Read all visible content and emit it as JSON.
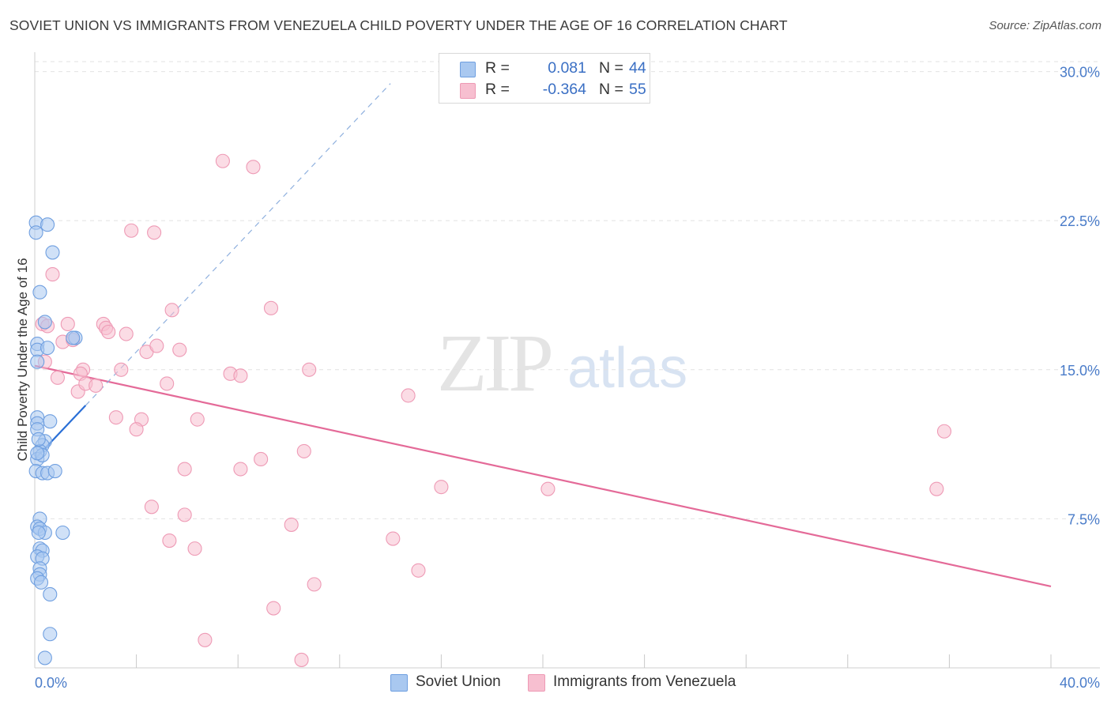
{
  "header": {
    "title": "SOVIET UNION VS IMMIGRANTS FROM VENEZUELA CHILD POVERTY UNDER THE AGE OF 16 CORRELATION CHART",
    "source": "Source: ZipAtlas.com"
  },
  "watermark": {
    "zip": "ZIP",
    "atlas": "atlas"
  },
  "legend": {
    "rows": [
      {
        "r_label": "R =",
        "r_value": "0.081",
        "n_label": "N =",
        "n_value": "44",
        "color": "#a9c8f0"
      },
      {
        "r_label": "R =",
        "r_value": "-0.364",
        "n_label": "N =",
        "n_value": "55",
        "color": "#f7bfd0"
      }
    ]
  },
  "bottom_legend": {
    "soviet": "Soviet Union",
    "venezuela": "Immigrants from Venezuela"
  },
  "colors": {
    "soviet_fill": "#a9c8f0",
    "soviet_stroke": "#6f9fe0",
    "soviet_line": "#2a6fd6",
    "venezuela_fill": "#f7bfd0",
    "venezuela_stroke": "#ee9ab5",
    "venezuela_line": "#e46a98",
    "grid": "#e2e2e2",
    "axis_text": "#4a7cc9"
  },
  "chart_data": {
    "type": "scatter",
    "title": "SOVIET UNION VS IMMIGRANTS FROM VENEZUELA CHILD POVERTY UNDER THE AGE OF 16 CORRELATION CHART",
    "xlabel": "",
    "ylabel": "Child Poverty Under the Age of 16",
    "xlim": [
      0,
      40
    ],
    "ylim": [
      0,
      30.5
    ],
    "x_tick_labels": [
      "0.0%",
      "40.0%"
    ],
    "y_ticks": [
      7.5,
      15.0,
      22.5,
      30.0
    ],
    "y_tick_labels": [
      "7.5%",
      "15.0%",
      "22.5%",
      "30.0%"
    ],
    "grid": true,
    "series": [
      {
        "name": "Soviet Union",
        "r": 0.081,
        "n": 44,
        "points": [
          [
            0.05,
            22.4
          ],
          [
            0.5,
            22.3
          ],
          [
            0.05,
            21.9
          ],
          [
            0.7,
            20.9
          ],
          [
            0.2,
            18.9
          ],
          [
            0.4,
            17.4
          ],
          [
            1.6,
            16.6
          ],
          [
            1.5,
            16.6
          ],
          [
            0.1,
            16.3
          ],
          [
            0.1,
            16.0
          ],
          [
            0.5,
            16.1
          ],
          [
            0.1,
            15.4
          ],
          [
            0.1,
            12.6
          ],
          [
            0.6,
            12.4
          ],
          [
            0.1,
            12.3
          ],
          [
            0.1,
            12.0
          ],
          [
            0.4,
            11.4
          ],
          [
            0.3,
            11.2
          ],
          [
            0.2,
            10.9
          ],
          [
            0.1,
            10.5
          ],
          [
            0.3,
            10.7
          ],
          [
            0.05,
            9.9
          ],
          [
            0.3,
            9.8
          ],
          [
            0.5,
            9.8
          ],
          [
            0.8,
            9.9
          ],
          [
            0.2,
            7.5
          ],
          [
            0.1,
            7.1
          ],
          [
            0.2,
            7.0
          ],
          [
            0.4,
            6.8
          ],
          [
            0.15,
            6.8
          ],
          [
            1.1,
            6.8
          ],
          [
            0.2,
            6.0
          ],
          [
            0.3,
            5.9
          ],
          [
            0.1,
            5.6
          ],
          [
            0.3,
            5.5
          ],
          [
            0.2,
            5.0
          ],
          [
            0.2,
            4.7
          ],
          [
            0.1,
            4.5
          ],
          [
            0.25,
            4.3
          ],
          [
            0.6,
            3.7
          ],
          [
            0.6,
            1.7
          ],
          [
            0.4,
            0.5
          ],
          [
            0.1,
            10.8
          ],
          [
            0.15,
            11.5
          ]
        ],
        "trend": {
          "x": [
            0.0,
            2.0
          ],
          "y": [
            10.5,
            13.2
          ]
        },
        "trend_dashed_extension": {
          "x": [
            2.0,
            14.0
          ],
          "y": [
            13.2,
            29.4
          ]
        }
      },
      {
        "name": "Immigrants from Venezuela",
        "r": -0.364,
        "n": 55,
        "points": [
          [
            0.3,
            17.3
          ],
          [
            0.5,
            17.2
          ],
          [
            1.3,
            17.3
          ],
          [
            0.7,
            19.8
          ],
          [
            0.4,
            15.4
          ],
          [
            0.9,
            14.6
          ],
          [
            1.1,
            16.4
          ],
          [
            1.5,
            16.5
          ],
          [
            1.9,
            15.0
          ],
          [
            1.8,
            14.8
          ],
          [
            1.7,
            13.9
          ],
          [
            2.0,
            14.3
          ],
          [
            2.4,
            14.2
          ],
          [
            2.7,
            17.3
          ],
          [
            2.8,
            17.1
          ],
          [
            2.9,
            16.9
          ],
          [
            3.6,
            16.8
          ],
          [
            3.4,
            15.0
          ],
          [
            3.8,
            22.0
          ],
          [
            4.7,
            21.9
          ],
          [
            4.4,
            15.9
          ],
          [
            4.8,
            16.2
          ],
          [
            5.2,
            14.3
          ],
          [
            5.4,
            18.0
          ],
          [
            5.7,
            16.0
          ],
          [
            3.2,
            12.6
          ],
          [
            4.2,
            12.5
          ],
          [
            4.0,
            12.0
          ],
          [
            6.4,
            12.5
          ],
          [
            7.4,
            25.5
          ],
          [
            7.7,
            14.8
          ],
          [
            8.1,
            14.7
          ],
          [
            8.6,
            25.2
          ],
          [
            8.1,
            10.0
          ],
          [
            8.9,
            10.5
          ],
          [
            9.3,
            18.1
          ],
          [
            10.6,
            10.9
          ],
          [
            10.8,
            15.0
          ],
          [
            14.7,
            13.7
          ],
          [
            5.9,
            10.0
          ],
          [
            4.6,
            8.1
          ],
          [
            5.9,
            7.7
          ],
          [
            5.3,
            6.4
          ],
          [
            6.3,
            6.0
          ],
          [
            10.1,
            7.2
          ],
          [
            14.1,
            6.5
          ],
          [
            15.1,
            4.9
          ],
          [
            11.0,
            4.2
          ],
          [
            9.4,
            3.0
          ],
          [
            6.7,
            1.4
          ],
          [
            10.5,
            0.4
          ],
          [
            16.0,
            9.1
          ],
          [
            20.2,
            9.0
          ],
          [
            35.8,
            11.9
          ],
          [
            35.5,
            9.0
          ]
        ],
        "trend": {
          "x": [
            0.0,
            40.0
          ],
          "y": [
            15.2,
            4.1
          ]
        }
      }
    ]
  }
}
